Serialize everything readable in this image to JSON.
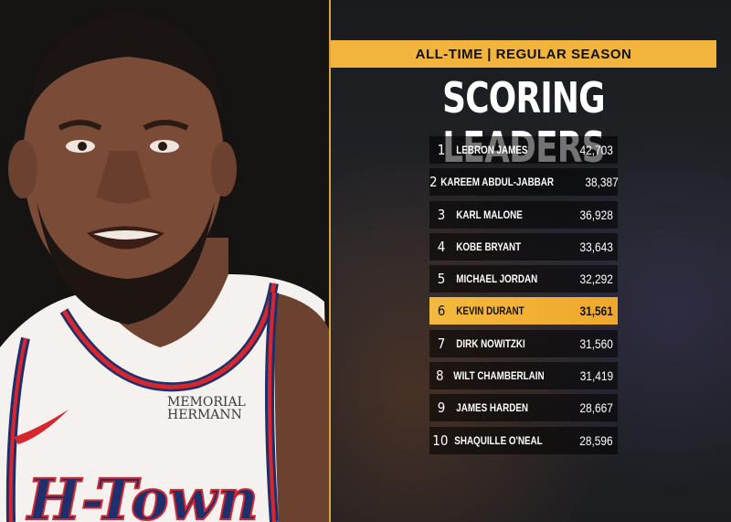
{
  "graphic": {
    "banner": "ALL-TIME | REGULAR SEASON",
    "title": "SCORING LEADERS",
    "leaders": [
      {
        "rank": "1",
        "name": "LEBRON JAMES",
        "points": "42,703"
      },
      {
        "rank": "2",
        "name": "KAREEM ABDUL-JABBAR",
        "points": "38,387"
      },
      {
        "rank": "3",
        "name": "KARL MALONE",
        "points": "36,928"
      },
      {
        "rank": "4",
        "name": "KOBE BRYANT",
        "points": "33,643"
      },
      {
        "rank": "5",
        "name": "MICHAEL JORDAN",
        "points": "32,292"
      },
      {
        "rank": "6",
        "name": "KEVIN DURANT",
        "points": "31,561",
        "highlight": true
      },
      {
        "rank": "7",
        "name": "DIRK NOWITZKI",
        "points": "31,560"
      },
      {
        "rank": "8",
        "name": "WILT CHAMBERLAIN",
        "points": "31,419"
      },
      {
        "rank": "9",
        "name": "JAMES HARDEN",
        "points": "28,667"
      },
      {
        "rank": "10",
        "name": "SHAQUILLE O'NEAL",
        "points": "28,596"
      }
    ],
    "highlight_color": "#f2b43c"
  },
  "photo": {
    "jersey_patch": [
      "MEMORIAL",
      "HERMANN"
    ],
    "jersey_text": "H-Town",
    "icons": [
      "swoosh-icon"
    ]
  }
}
